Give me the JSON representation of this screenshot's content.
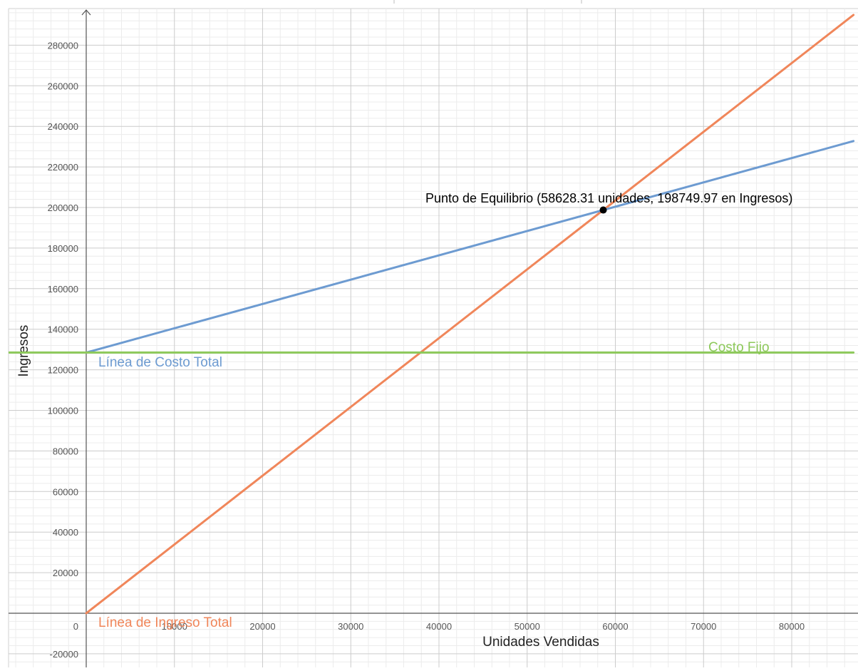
{
  "chart_data": {
    "type": "line",
    "xlabel": "Unidades Vendidas",
    "ylabel": "Ingresos",
    "xlim": [
      -9500,
      87000
    ],
    "ylim": [
      -26000,
      300000
    ],
    "x_ticks": [
      10000,
      20000,
      30000,
      40000,
      50000,
      60000,
      70000,
      80000
    ],
    "y_ticks": [
      -20000,
      0,
      20000,
      40000,
      60000,
      80000,
      100000,
      120000,
      140000,
      160000,
      180000,
      200000,
      220000,
      240000,
      260000,
      280000
    ],
    "origin_label": "0",
    "grid": true,
    "series": [
      {
        "name": "Línea de Ingreso Total",
        "color": "#f0865a",
        "x": [
          0,
          87000
        ],
        "y": [
          0,
          294930
        ]
      },
      {
        "name": "Línea de Costo Total",
        "color": "#6d9bd1",
        "x": [
          0,
          87000
        ],
        "y": [
          128500,
          232750
        ]
      },
      {
        "name": "Costo Fijo",
        "color": "#8dc95a",
        "x": [
          -9500,
          87000
        ],
        "y": [
          128500,
          128500
        ]
      }
    ],
    "annotations": [
      {
        "text": "Punto de Equilibrio (58628.31 unidades, 198749.97 en Ingresos)",
        "x": 58628.31,
        "y": 198749.97,
        "color": "#000000"
      }
    ]
  }
}
